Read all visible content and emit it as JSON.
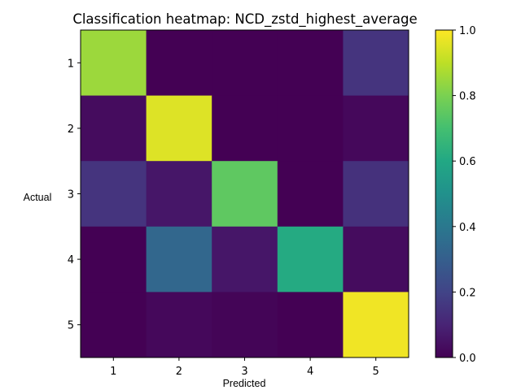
{
  "chart_data": {
    "type": "heatmap",
    "title": "Classification heatmap: NCD_zstd_highest_average",
    "xlabel": "Predicted",
    "ylabel": "Actual",
    "x_categories": [
      "1",
      "2",
      "3",
      "4",
      "5"
    ],
    "y_categories": [
      "1",
      "2",
      "3",
      "4",
      "5"
    ],
    "values": [
      [
        0.85,
        0.0,
        0.0,
        0.0,
        0.15
      ],
      [
        0.03,
        0.95,
        0.0,
        0.0,
        0.02
      ],
      [
        0.15,
        0.06,
        0.75,
        0.0,
        0.14
      ],
      [
        0.0,
        0.33,
        0.06,
        0.61,
        0.03
      ],
      [
        0.0,
        0.02,
        0.01,
        0.0,
        0.98
      ]
    ],
    "colormap": "viridis",
    "vmin": 0.0,
    "vmax": 1.0,
    "colorbar_ticks": [
      "0.0",
      "0.2",
      "0.4",
      "0.6",
      "0.8",
      "1.0"
    ],
    "grid": false
  }
}
